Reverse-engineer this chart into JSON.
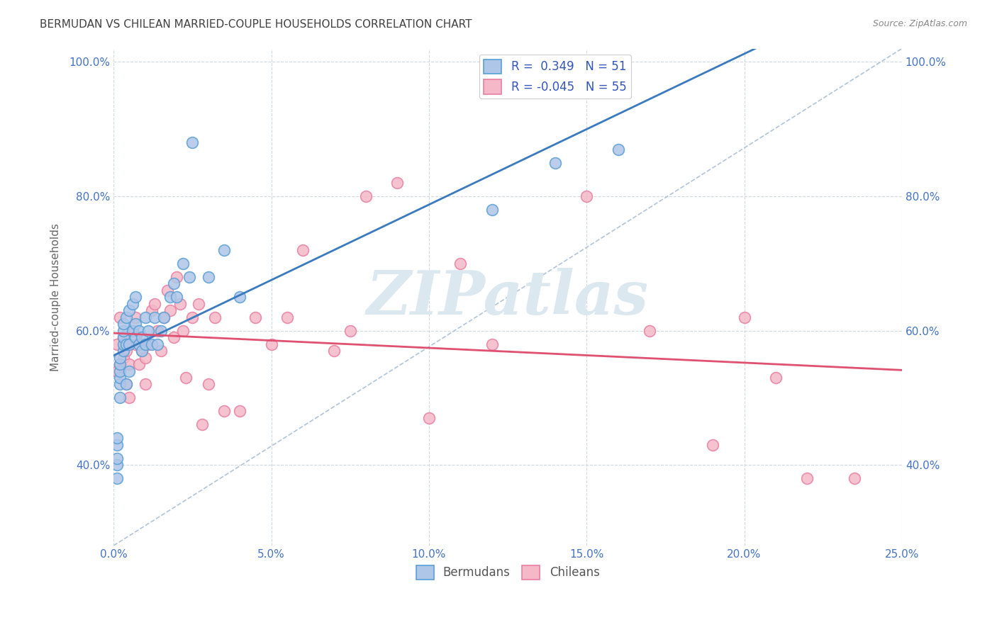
{
  "title": "BERMUDAN VS CHILEAN MARRIED-COUPLE HOUSEHOLDS CORRELATION CHART",
  "source": "Source: ZipAtlas.com",
  "ylabel": "Married-couple Households",
  "xlim": [
    0.0,
    0.25
  ],
  "ylim": [
    0.28,
    1.02
  ],
  "xticks": [
    0.0,
    0.05,
    0.1,
    0.15,
    0.2,
    0.25
  ],
  "yticks": [
    0.4,
    0.6,
    0.8,
    1.0
  ],
  "ytick_labels": [
    "40.0%",
    "60.0%",
    "80.0%",
    "100.0%"
  ],
  "xtick_labels": [
    "0.0%",
    "5.0%",
    "10.0%",
    "15.0%",
    "20.0%",
    "25.0%"
  ],
  "bermuda_color": "#aec6e8",
  "chile_color": "#f4b8c8",
  "bermuda_edge": "#5a9fd4",
  "chile_edge": "#e87fa0",
  "trend_bermuda_color": "#3a7abf",
  "trend_chile_color": "#e05070",
  "diag_color": "#b0c4d8",
  "watermark_color": "#dce8f0",
  "bg_color": "#ffffff",
  "grid_color": "#d0d8e0",
  "title_color": "#404040",
  "axis_label_color": "#4472c4",
  "legend_label_color": "#3355bb",
  "bermudans_x": [
    0.001,
    0.001,
    0.001,
    0.001,
    0.001,
    0.002,
    0.002,
    0.002,
    0.002,
    0.002,
    0.002,
    0.003,
    0.003,
    0.003,
    0.003,
    0.003,
    0.004,
    0.004,
    0.004,
    0.005,
    0.005,
    0.005,
    0.006,
    0.006,
    0.007,
    0.007,
    0.007,
    0.008,
    0.008,
    0.009,
    0.009,
    0.01,
    0.01,
    0.011,
    0.012,
    0.013,
    0.014,
    0.015,
    0.016,
    0.018,
    0.019,
    0.02,
    0.022,
    0.024,
    0.025,
    0.03,
    0.035,
    0.04,
    0.12,
    0.14,
    0.16
  ],
  "bermudans_y": [
    0.38,
    0.4,
    0.41,
    0.43,
    0.44,
    0.5,
    0.52,
    0.53,
    0.54,
    0.55,
    0.56,
    0.57,
    0.58,
    0.59,
    0.6,
    0.61,
    0.52,
    0.58,
    0.62,
    0.54,
    0.58,
    0.63,
    0.6,
    0.64,
    0.59,
    0.61,
    0.65,
    0.58,
    0.6,
    0.57,
    0.59,
    0.58,
    0.62,
    0.6,
    0.58,
    0.62,
    0.58,
    0.6,
    0.62,
    0.65,
    0.67,
    0.65,
    0.7,
    0.68,
    0.88,
    0.68,
    0.72,
    0.65,
    0.78,
    0.85,
    0.87
  ],
  "chileans_x": [
    0.001,
    0.001,
    0.002,
    0.002,
    0.003,
    0.003,
    0.004,
    0.004,
    0.005,
    0.005,
    0.006,
    0.007,
    0.007,
    0.008,
    0.009,
    0.01,
    0.01,
    0.011,
    0.012,
    0.013,
    0.014,
    0.015,
    0.016,
    0.017,
    0.018,
    0.019,
    0.02,
    0.021,
    0.022,
    0.023,
    0.025,
    0.027,
    0.028,
    0.03,
    0.032,
    0.035,
    0.04,
    0.045,
    0.05,
    0.055,
    0.06,
    0.07,
    0.075,
    0.08,
    0.09,
    0.1,
    0.11,
    0.12,
    0.15,
    0.17,
    0.19,
    0.2,
    0.21,
    0.22,
    0.235
  ],
  "chileans_y": [
    0.54,
    0.58,
    0.55,
    0.62,
    0.56,
    0.59,
    0.52,
    0.57,
    0.5,
    0.55,
    0.6,
    0.58,
    0.62,
    0.55,
    0.57,
    0.52,
    0.56,
    0.58,
    0.63,
    0.64,
    0.6,
    0.57,
    0.62,
    0.66,
    0.63,
    0.59,
    0.68,
    0.64,
    0.6,
    0.53,
    0.62,
    0.64,
    0.46,
    0.52,
    0.62,
    0.48,
    0.48,
    0.62,
    0.58,
    0.62,
    0.72,
    0.57,
    0.6,
    0.8,
    0.82,
    0.47,
    0.7,
    0.58,
    0.8,
    0.6,
    0.43,
    0.62,
    0.53,
    0.38,
    0.38
  ]
}
